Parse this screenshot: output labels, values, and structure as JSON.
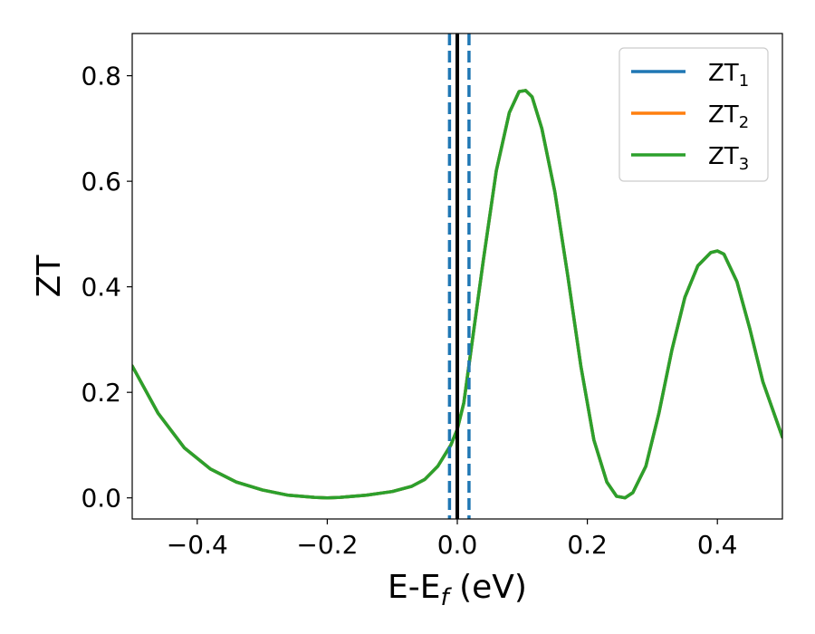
{
  "chart_data": {
    "type": "line",
    "xlabel": "E-E_f (eV)",
    "xlabel_parts": {
      "main": "E-E",
      "sub": "f",
      "tail": " (eV)"
    },
    "ylabel": "ZT",
    "xlim": [
      -0.5,
      0.5
    ],
    "ylim": [
      -0.04,
      0.88
    ],
    "xticks": [
      -0.4,
      -0.2,
      0.0,
      0.2,
      0.4
    ],
    "xtick_labels": [
      "−0.4",
      "−0.2",
      "0.0",
      "0.2",
      "0.4"
    ],
    "yticks": [
      0.0,
      0.2,
      0.4,
      0.6,
      0.8
    ],
    "ytick_labels": [
      "0.0",
      "0.2",
      "0.4",
      "0.6",
      "0.8"
    ],
    "grid": false,
    "legend_placement": "top-right",
    "series": [
      {
        "name": "ZT1",
        "base": "ZT",
        "sub": "1",
        "color": "#1f77b4",
        "x": [
          -0.5,
          -0.46,
          -0.42,
          -0.38,
          -0.34,
          -0.3,
          -0.26,
          -0.22,
          -0.2,
          -0.18,
          -0.14,
          -0.1,
          -0.07,
          -0.05,
          -0.03,
          -0.01,
          0.0,
          0.01,
          0.02,
          0.04,
          0.06,
          0.08,
          0.095,
          0.105,
          0.115,
          0.13,
          0.15,
          0.17,
          0.19,
          0.21,
          0.23,
          0.245,
          0.258,
          0.27,
          0.29,
          0.31,
          0.33,
          0.35,
          0.37,
          0.39,
          0.4,
          0.41,
          0.43,
          0.45,
          0.47,
          0.5
        ],
        "values": [
          0.25,
          0.16,
          0.095,
          0.055,
          0.03,
          0.015,
          0.005,
          0.001,
          0.0,
          0.001,
          0.005,
          0.012,
          0.022,
          0.035,
          0.06,
          0.1,
          0.13,
          0.18,
          0.27,
          0.45,
          0.62,
          0.73,
          0.77,
          0.772,
          0.76,
          0.7,
          0.58,
          0.42,
          0.25,
          0.11,
          0.03,
          0.003,
          0.0,
          0.01,
          0.06,
          0.16,
          0.28,
          0.38,
          0.44,
          0.465,
          0.468,
          0.462,
          0.41,
          0.32,
          0.22,
          0.115
        ]
      },
      {
        "name": "ZT2",
        "base": "ZT",
        "sub": "2",
        "color": "#ff7f0e",
        "x": [
          -0.5,
          -0.46,
          -0.42,
          -0.38,
          -0.34,
          -0.3,
          -0.26,
          -0.22,
          -0.2,
          -0.18,
          -0.14,
          -0.1,
          -0.07,
          -0.05,
          -0.03,
          -0.01,
          0.0,
          0.01,
          0.02,
          0.04,
          0.06,
          0.08,
          0.095,
          0.105,
          0.115,
          0.13,
          0.15,
          0.17,
          0.19,
          0.21,
          0.23,
          0.245,
          0.258,
          0.27,
          0.29,
          0.31,
          0.33,
          0.35,
          0.37,
          0.39,
          0.4,
          0.41,
          0.43,
          0.45,
          0.47,
          0.5
        ],
        "values": [
          0.25,
          0.16,
          0.095,
          0.055,
          0.03,
          0.015,
          0.005,
          0.001,
          0.0,
          0.001,
          0.005,
          0.012,
          0.022,
          0.035,
          0.06,
          0.1,
          0.13,
          0.18,
          0.27,
          0.45,
          0.62,
          0.73,
          0.77,
          0.772,
          0.76,
          0.7,
          0.58,
          0.42,
          0.25,
          0.11,
          0.03,
          0.003,
          0.0,
          0.01,
          0.06,
          0.16,
          0.28,
          0.38,
          0.44,
          0.465,
          0.468,
          0.462,
          0.41,
          0.32,
          0.22,
          0.115
        ]
      },
      {
        "name": "ZT3",
        "base": "ZT",
        "sub": "3",
        "color": "#2ca02c",
        "x": [
          -0.5,
          -0.46,
          -0.42,
          -0.38,
          -0.34,
          -0.3,
          -0.26,
          -0.22,
          -0.2,
          -0.18,
          -0.14,
          -0.1,
          -0.07,
          -0.05,
          -0.03,
          -0.01,
          0.0,
          0.01,
          0.02,
          0.04,
          0.06,
          0.08,
          0.095,
          0.105,
          0.115,
          0.13,
          0.15,
          0.17,
          0.19,
          0.21,
          0.23,
          0.245,
          0.258,
          0.27,
          0.29,
          0.31,
          0.33,
          0.35,
          0.37,
          0.39,
          0.4,
          0.41,
          0.43,
          0.45,
          0.47,
          0.5
        ],
        "values": [
          0.25,
          0.16,
          0.095,
          0.055,
          0.03,
          0.015,
          0.005,
          0.001,
          0.0,
          0.001,
          0.005,
          0.012,
          0.022,
          0.035,
          0.06,
          0.1,
          0.13,
          0.18,
          0.27,
          0.45,
          0.62,
          0.73,
          0.77,
          0.772,
          0.76,
          0.7,
          0.58,
          0.42,
          0.25,
          0.11,
          0.03,
          0.003,
          0.0,
          0.01,
          0.06,
          0.16,
          0.28,
          0.38,
          0.44,
          0.465,
          0.468,
          0.462,
          0.41,
          0.32,
          0.22,
          0.115
        ]
      }
    ],
    "vlines": [
      {
        "x": -0.012,
        "style": "dashed",
        "color": "#1f77b4"
      },
      {
        "x": 0.0,
        "style": "solid",
        "color": "#000000"
      },
      {
        "x": 0.018,
        "style": "dashed",
        "color": "#1f77b4"
      }
    ]
  }
}
